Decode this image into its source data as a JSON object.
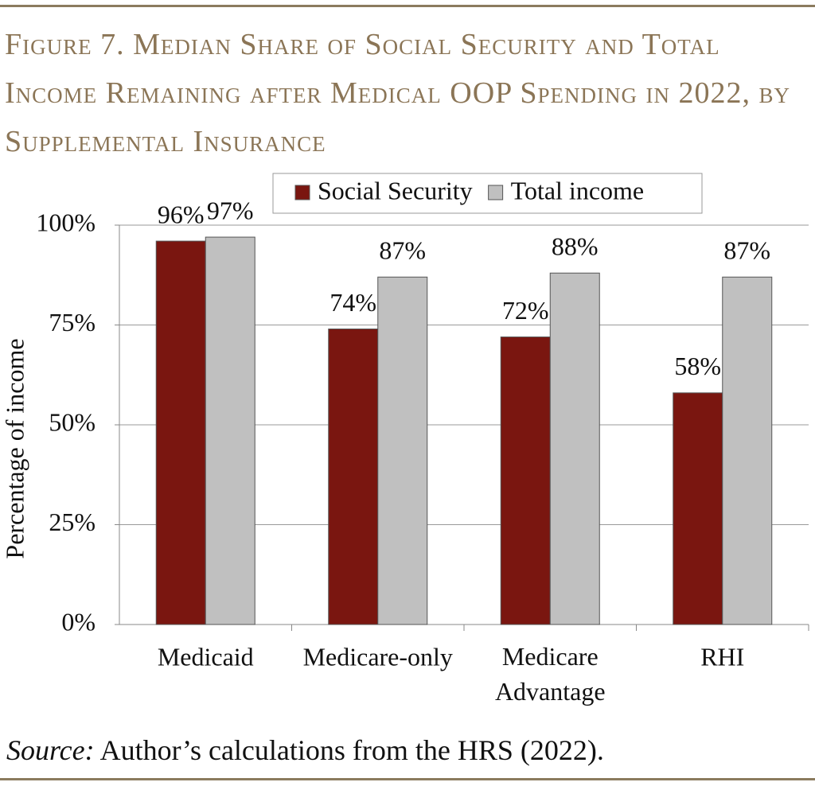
{
  "chart_data": {
    "type": "bar",
    "title": "Figure 7. Median Share of Social Security and Total Income Remaining after Medical OOP Spending in 2022, by Supplemental Insurance",
    "y_label": "Percentage of income",
    "categories": [
      "Medicaid",
      "Medicare-only",
      "Medicare Advantage",
      "RHI"
    ],
    "series": [
      {
        "name": "Social Security",
        "color": "#7a1610",
        "values": [
          96,
          74,
          72,
          58
        ],
        "value_labels": [
          "96%",
          "74%",
          "72%",
          "58%"
        ]
      },
      {
        "name": "Total income",
        "color": "#c0c0c0",
        "values": [
          97,
          87,
          88,
          87
        ],
        "value_labels": [
          "97%",
          "87%",
          "88%",
          "87%"
        ]
      }
    ],
    "ylim": [
      0,
      100
    ],
    "yticks": [
      {
        "value": 0,
        "label": "0%"
      },
      {
        "value": 25,
        "label": "25%"
      },
      {
        "value": 50,
        "label": "50%"
      },
      {
        "value": 75,
        "label": "75%"
      },
      {
        "value": 100,
        "label": "100%"
      }
    ],
    "grid": true,
    "legend": "top",
    "source_label": "Source:",
    "source_text": "Author’s calculations from the HRS (2022)."
  }
}
